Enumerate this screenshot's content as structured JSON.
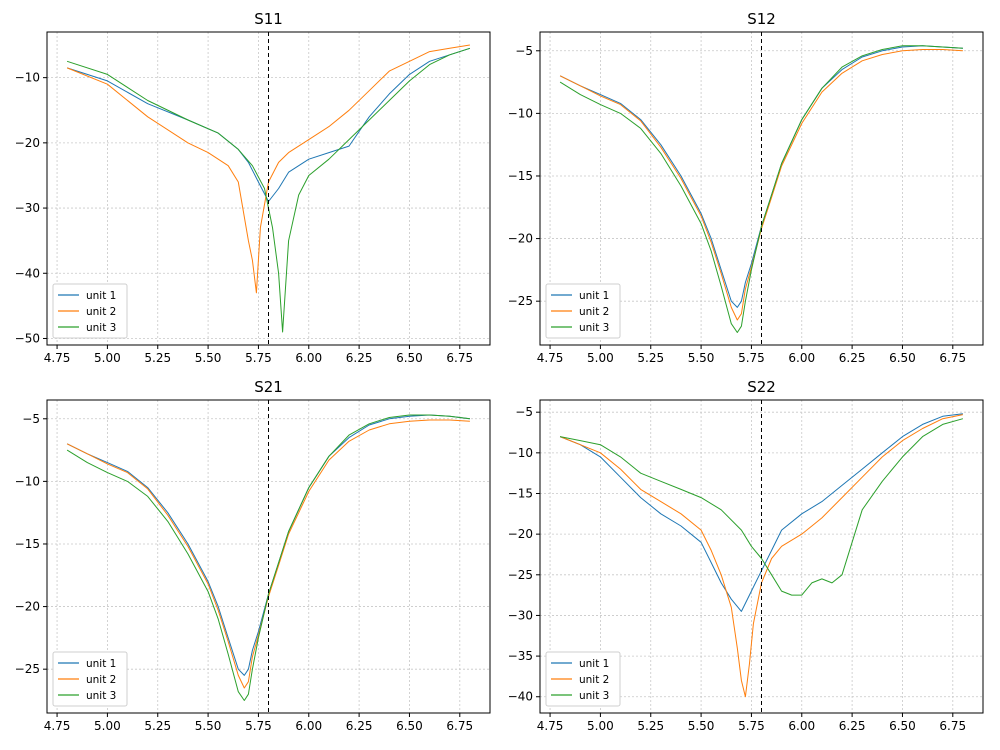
{
  "chart_data": [
    {
      "type": "line",
      "title": "S11",
      "xlim": [
        4.7,
        6.9
      ],
      "ylim": [
        -51,
        -3
      ],
      "xticks": [
        4.75,
        5.0,
        5.25,
        5.5,
        5.75,
        6.0,
        6.25,
        6.5,
        6.75
      ],
      "xtick_labels": [
        "4.75",
        "5.00",
        "5.25",
        "5.50",
        "5.75",
        "6.00",
        "6.25",
        "6.50",
        "6.75"
      ],
      "yticks": [
        -50,
        -40,
        -30,
        -20,
        -10
      ],
      "ytick_labels": [
        "−50",
        "−40",
        "−30",
        "−20",
        "−10"
      ],
      "marker_x": 5.8,
      "grid": true,
      "legend_position": "lower-left",
      "series": [
        {
          "name": "unit 1",
          "color": "#1f77b4",
          "x": [
            4.8,
            5.0,
            5.2,
            5.4,
            5.55,
            5.65,
            5.7,
            5.75,
            5.8,
            5.85,
            5.9,
            6.0,
            6.1,
            6.2,
            6.3,
            6.4,
            6.5,
            6.6,
            6.7,
            6.8
          ],
          "y": [
            -8.5,
            -10.5,
            -14.0,
            -16.5,
            -18.5,
            -21.0,
            -23.0,
            -26.0,
            -29.0,
            -27.0,
            -24.5,
            -22.5,
            -21.5,
            -20.5,
            -16.0,
            -12.5,
            -9.5,
            -7.5,
            -6.5,
            -5.5
          ]
        },
        {
          "name": "unit 2",
          "color": "#ff7f0e",
          "x": [
            4.8,
            5.0,
            5.2,
            5.4,
            5.5,
            5.6,
            5.65,
            5.7,
            5.72,
            5.74,
            5.76,
            5.8,
            5.85,
            5.9,
            6.0,
            6.1,
            6.2,
            6.3,
            6.4,
            6.5,
            6.6,
            6.7,
            6.8
          ],
          "y": [
            -8.5,
            -11.0,
            -16.0,
            -20.0,
            -21.5,
            -23.5,
            -26.0,
            -35.0,
            -38.0,
            -43.0,
            -33.0,
            -26.0,
            -23.0,
            -21.5,
            -19.5,
            -17.5,
            -15.0,
            -12.0,
            -9.0,
            -7.5,
            -6.0,
            -5.5,
            -5.0
          ]
        },
        {
          "name": "unit 3",
          "color": "#2ca02c",
          "x": [
            4.8,
            5.0,
            5.2,
            5.4,
            5.55,
            5.65,
            5.72,
            5.78,
            5.82,
            5.85,
            5.87,
            5.9,
            5.95,
            6.0,
            6.1,
            6.2,
            6.3,
            6.4,
            6.5,
            6.6,
            6.7,
            6.8
          ],
          "y": [
            -7.5,
            -9.5,
            -13.5,
            -16.5,
            -18.5,
            -21.0,
            -23.5,
            -27.0,
            -33.0,
            -40.0,
            -49.0,
            -35.0,
            -28.0,
            -25.0,
            -22.5,
            -19.5,
            -16.5,
            -13.5,
            -10.5,
            -8.0,
            -6.5,
            -5.5
          ]
        }
      ]
    },
    {
      "type": "line",
      "title": "S12",
      "xlim": [
        4.7,
        6.9
      ],
      "ylim": [
        -28.5,
        -3.5
      ],
      "xticks": [
        4.75,
        5.0,
        5.25,
        5.5,
        5.75,
        6.0,
        6.25,
        6.5,
        6.75
      ],
      "xtick_labels": [
        "4.75",
        "5.00",
        "5.25",
        "5.50",
        "5.75",
        "6.00",
        "6.25",
        "6.50",
        "6.75"
      ],
      "yticks": [
        -25,
        -20,
        -15,
        -10,
        -5
      ],
      "ytick_labels": [
        "−25",
        "−20",
        "−15",
        "−10",
        "−5"
      ],
      "marker_x": 5.8,
      "grid": true,
      "legend_position": "lower-left",
      "series": [
        {
          "name": "unit 1",
          "color": "#1f77b4",
          "x": [
            4.8,
            4.9,
            5.0,
            5.1,
            5.2,
            5.3,
            5.4,
            5.5,
            5.55,
            5.6,
            5.65,
            5.68,
            5.7,
            5.72,
            5.75,
            5.8,
            5.85,
            5.9,
            6.0,
            6.1,
            6.2,
            6.3,
            6.4,
            6.5,
            6.6,
            6.7,
            6.8
          ],
          "y": [
            -7.0,
            -7.8,
            -8.5,
            -9.2,
            -10.5,
            -12.5,
            -15.0,
            -18.0,
            -20.0,
            -22.5,
            -25.0,
            -25.5,
            -25.0,
            -23.5,
            -22.0,
            -19.0,
            -16.5,
            -14.0,
            -10.5,
            -8.0,
            -6.5,
            -5.5,
            -5.0,
            -4.7,
            -4.6,
            -4.7,
            -4.8
          ]
        },
        {
          "name": "unit 2",
          "color": "#ff7f0e",
          "x": [
            4.8,
            4.9,
            5.0,
            5.1,
            5.2,
            5.3,
            5.4,
            5.5,
            5.55,
            5.6,
            5.65,
            5.68,
            5.7,
            5.72,
            5.75,
            5.8,
            5.85,
            5.9,
            6.0,
            6.1,
            6.2,
            6.3,
            6.4,
            6.5,
            6.6,
            6.7,
            6.8
          ],
          "y": [
            -7.0,
            -7.8,
            -8.6,
            -9.3,
            -10.6,
            -12.7,
            -15.2,
            -18.2,
            -20.3,
            -22.8,
            -25.5,
            -26.5,
            -26.0,
            -24.0,
            -22.3,
            -19.2,
            -16.7,
            -14.2,
            -10.8,
            -8.3,
            -6.8,
            -5.8,
            -5.3,
            -5.0,
            -4.9,
            -4.9,
            -5.0
          ]
        },
        {
          "name": "unit 3",
          "color": "#2ca02c",
          "x": [
            4.8,
            4.9,
            5.0,
            5.1,
            5.2,
            5.3,
            5.4,
            5.5,
            5.55,
            5.6,
            5.65,
            5.68,
            5.7,
            5.72,
            5.75,
            5.8,
            5.85,
            5.9,
            6.0,
            6.1,
            6.2,
            6.3,
            6.4,
            6.5,
            6.6,
            6.7,
            6.8
          ],
          "y": [
            -7.5,
            -8.5,
            -9.3,
            -10.0,
            -11.2,
            -13.2,
            -15.8,
            -18.8,
            -21.0,
            -23.8,
            -26.8,
            -27.5,
            -27.0,
            -25.0,
            -22.5,
            -19.0,
            -16.5,
            -14.0,
            -10.5,
            -8.0,
            -6.3,
            -5.4,
            -4.9,
            -4.6,
            -4.6,
            -4.7,
            -4.8
          ]
        }
      ]
    },
    {
      "type": "line",
      "title": "S21",
      "xlim": [
        4.7,
        6.9
      ],
      "ylim": [
        -28.5,
        -3.5
      ],
      "xticks": [
        4.75,
        5.0,
        5.25,
        5.5,
        5.75,
        6.0,
        6.25,
        6.5,
        6.75
      ],
      "xtick_labels": [
        "4.75",
        "5.00",
        "5.25",
        "5.50",
        "5.75",
        "6.00",
        "6.25",
        "6.50",
        "6.75"
      ],
      "yticks": [
        -25,
        -20,
        -15,
        -10,
        -5
      ],
      "ytick_labels": [
        "−25",
        "−20",
        "−15",
        "−10",
        "−5"
      ],
      "marker_x": 5.8,
      "grid": true,
      "legend_position": "lower-left",
      "series": [
        {
          "name": "unit 1",
          "color": "#1f77b4",
          "x": [
            4.8,
            4.9,
            5.0,
            5.1,
            5.2,
            5.3,
            5.4,
            5.5,
            5.55,
            5.6,
            5.65,
            5.68,
            5.7,
            5.72,
            5.75,
            5.8,
            5.85,
            5.9,
            6.0,
            6.1,
            6.2,
            6.3,
            6.4,
            6.5,
            6.6,
            6.7,
            6.8
          ],
          "y": [
            -7.0,
            -7.8,
            -8.5,
            -9.2,
            -10.5,
            -12.5,
            -15.0,
            -18.0,
            -20.0,
            -22.5,
            -25.0,
            -25.5,
            -25.0,
            -23.5,
            -22.0,
            -19.0,
            -16.5,
            -14.0,
            -10.5,
            -8.0,
            -6.5,
            -5.5,
            -5.0,
            -4.8,
            -4.7,
            -4.8,
            -5.0
          ]
        },
        {
          "name": "unit 2",
          "color": "#ff7f0e",
          "x": [
            4.8,
            4.9,
            5.0,
            5.1,
            5.2,
            5.3,
            5.4,
            5.5,
            5.55,
            5.6,
            5.65,
            5.68,
            5.7,
            5.72,
            5.75,
            5.8,
            5.85,
            5.9,
            6.0,
            6.1,
            6.2,
            6.3,
            6.4,
            6.5,
            6.6,
            6.7,
            6.8
          ],
          "y": [
            -7.0,
            -7.8,
            -8.6,
            -9.3,
            -10.6,
            -12.7,
            -15.2,
            -18.2,
            -20.3,
            -22.8,
            -25.5,
            -26.5,
            -26.0,
            -24.0,
            -22.3,
            -19.2,
            -16.7,
            -14.2,
            -10.8,
            -8.3,
            -6.8,
            -5.9,
            -5.4,
            -5.2,
            -5.1,
            -5.1,
            -5.2
          ]
        },
        {
          "name": "unit 3",
          "color": "#2ca02c",
          "x": [
            4.8,
            4.9,
            5.0,
            5.1,
            5.2,
            5.3,
            5.4,
            5.5,
            5.55,
            5.6,
            5.65,
            5.68,
            5.7,
            5.72,
            5.75,
            5.8,
            5.85,
            5.9,
            6.0,
            6.1,
            6.2,
            6.3,
            6.4,
            6.5,
            6.6,
            6.7,
            6.8
          ],
          "y": [
            -7.5,
            -8.5,
            -9.3,
            -10.0,
            -11.2,
            -13.2,
            -15.8,
            -18.8,
            -21.0,
            -23.8,
            -26.8,
            -27.5,
            -27.0,
            -25.0,
            -22.5,
            -19.0,
            -16.5,
            -14.0,
            -10.5,
            -8.0,
            -6.3,
            -5.4,
            -4.9,
            -4.7,
            -4.7,
            -4.8,
            -5.0
          ]
        }
      ]
    },
    {
      "type": "line",
      "title": "S22",
      "xlim": [
        4.7,
        6.9
      ],
      "ylim": [
        -42,
        -3.5
      ],
      "xticks": [
        4.75,
        5.0,
        5.25,
        5.5,
        5.75,
        6.0,
        6.25,
        6.5,
        6.75
      ],
      "xtick_labels": [
        "4.75",
        "5.00",
        "5.25",
        "5.50",
        "5.75",
        "6.00",
        "6.25",
        "6.50",
        "6.75"
      ],
      "yticks": [
        -40,
        -35,
        -30,
        -25,
        -20,
        -15,
        -10,
        -5
      ],
      "ytick_labels": [
        "−40",
        "−35",
        "−30",
        "−25",
        "−20",
        "−15",
        "−10",
        "−5"
      ],
      "marker_x": 5.8,
      "grid": true,
      "legend_position": "lower-left",
      "series": [
        {
          "name": "unit 1",
          "color": "#1f77b4",
          "x": [
            4.8,
            4.9,
            5.0,
            5.1,
            5.2,
            5.3,
            5.4,
            5.5,
            5.55,
            5.6,
            5.65,
            5.7,
            5.75,
            5.8,
            5.85,
            5.9,
            6.0,
            6.1,
            6.2,
            6.3,
            6.4,
            6.5,
            6.6,
            6.7,
            6.8
          ],
          "y": [
            -8.0,
            -9.0,
            -10.5,
            -13.0,
            -15.5,
            -17.5,
            -19.0,
            -21.0,
            -23.5,
            -26.0,
            -28.0,
            -29.5,
            -27.0,
            -24.5,
            -22.0,
            -19.5,
            -17.5,
            -16.0,
            -14.0,
            -12.0,
            -10.0,
            -8.0,
            -6.5,
            -5.5,
            -5.2
          ]
        },
        {
          "name": "unit 2",
          "color": "#ff7f0e",
          "x": [
            4.8,
            4.9,
            5.0,
            5.1,
            5.2,
            5.3,
            5.4,
            5.5,
            5.55,
            5.6,
            5.65,
            5.68,
            5.7,
            5.72,
            5.74,
            5.76,
            5.8,
            5.85,
            5.9,
            6.0,
            6.1,
            6.2,
            6.3,
            6.4,
            6.5,
            6.6,
            6.7,
            6.8
          ],
          "y": [
            -8.0,
            -9.0,
            -10.0,
            -12.0,
            -14.5,
            -16.0,
            -17.5,
            -19.5,
            -22.0,
            -25.0,
            -29.0,
            -34.0,
            -38.0,
            -40.0,
            -36.0,
            -31.0,
            -26.0,
            -23.0,
            -21.5,
            -20.0,
            -18.0,
            -15.5,
            -13.0,
            -10.5,
            -8.5,
            -7.0,
            -5.8,
            -5.3
          ]
        },
        {
          "name": "unit 3",
          "color": "#2ca02c",
          "x": [
            4.8,
            4.9,
            5.0,
            5.1,
            5.2,
            5.3,
            5.4,
            5.5,
            5.6,
            5.7,
            5.75,
            5.8,
            5.85,
            5.9,
            5.95,
            6.0,
            6.05,
            6.1,
            6.15,
            6.2,
            6.25,
            6.3,
            6.4,
            6.5,
            6.6,
            6.7,
            6.8
          ],
          "y": [
            -8.0,
            -8.5,
            -9.0,
            -10.5,
            -12.5,
            -13.5,
            -14.5,
            -15.5,
            -17.0,
            -19.5,
            -21.5,
            -23.0,
            -25.0,
            -27.0,
            -27.5,
            -27.5,
            -26.0,
            -25.5,
            -26.0,
            -25.0,
            -21.0,
            -17.0,
            -13.5,
            -10.5,
            -8.0,
            -6.5,
            -5.8
          ]
        }
      ]
    }
  ]
}
